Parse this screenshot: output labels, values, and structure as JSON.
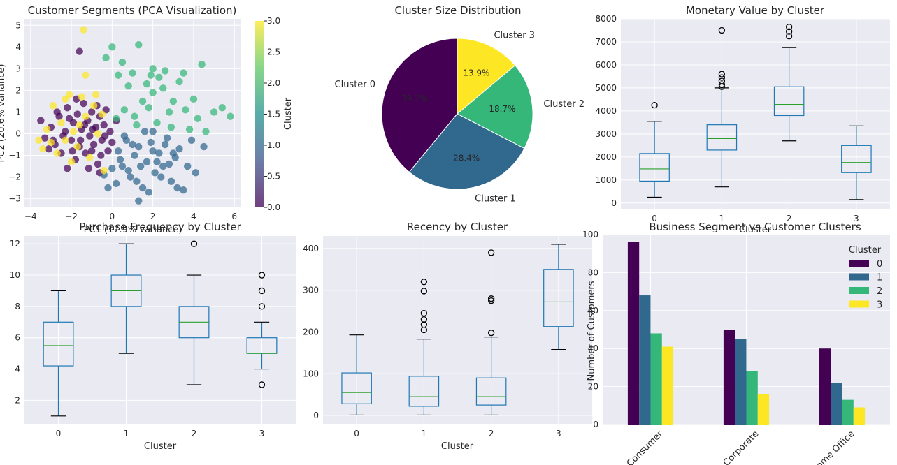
{
  "chart_data": [
    {
      "type": "scatter",
      "title": "Customer Segments (PCA Visualization)",
      "xlabel": "PC1 (17.9% variance)",
      "ylabel": "PC2 (20.6% variance)",
      "xlim": [
        -4.3,
        6.3
      ],
      "ylim": [
        -3.4,
        5.3
      ],
      "xticks": [
        "−4",
        "−2",
        "0",
        "2",
        "4",
        "6"
      ],
      "yticks": [
        "−3",
        "−2",
        "−1",
        "0",
        "1",
        "2",
        "3",
        "4",
        "5"
      ],
      "colorbar": {
        "label": "Cluster",
        "range": [
          0,
          3
        ],
        "ticks": [
          "0.0",
          "0.5",
          "1.0",
          "1.5",
          "2.0",
          "2.5",
          "3.0"
        ]
      },
      "colormap": [
        "#440154",
        "#3b528b",
        "#21918c",
        "#5ec962",
        "#fde725"
      ],
      "series": [
        {
          "cluster": 0,
          "color": "#440154",
          "points": [
            [
              -3.5,
              0.6
            ],
            [
              -3.3,
              -0.2
            ],
            [
              -3.0,
              0.3
            ],
            [
              -2.8,
              -0.5
            ],
            [
              -2.6,
              0.8
            ],
            [
              -2.5,
              -0.9
            ],
            [
              -2.3,
              0.1
            ],
            [
              -2.2,
              1.2
            ],
            [
              -2.0,
              -0.3
            ],
            [
              -1.9,
              0.5
            ],
            [
              -1.8,
              -1.2
            ],
            [
              -1.7,
              0.9
            ],
            [
              -1.6,
              -0.6
            ],
            [
              -1.5,
              0.2
            ],
            [
              -1.4,
              1.4
            ],
            [
              -1.3,
              -0.9
            ],
            [
              -1.2,
              0.6
            ],
            [
              -1.1,
              -0.1
            ],
            [
              -1.0,
              1.0
            ],
            [
              -0.9,
              -0.5
            ],
            [
              -0.8,
              0.3
            ],
            [
              -0.7,
              -1.4
            ],
            [
              -0.6,
              0.8
            ],
            [
              -0.5,
              -0.3
            ],
            [
              -0.4,
              0.4
            ],
            [
              -0.3,
              1.1
            ],
            [
              -0.2,
              -0.8
            ],
            [
              -0.1,
              0.1
            ],
            [
              0.0,
              -0.4
            ],
            [
              0.2,
              0.6
            ],
            [
              -3.1,
              -0.7
            ],
            [
              -2.7,
              1.0
            ],
            [
              -2.4,
              -0.1
            ],
            [
              -2.1,
              0.7
            ],
            [
              -1.95,
              -0.8
            ],
            [
              -1.75,
              1.6
            ],
            [
              -1.55,
              -0.3
            ],
            [
              -1.35,
              0.4
            ],
            [
              -1.15,
              -1.6
            ],
            [
              -0.95,
              0.2
            ],
            [
              -0.75,
              1.3
            ],
            [
              -0.55,
              -1.0
            ],
            [
              -0.35,
              -0.1
            ],
            [
              -1.6,
              3.8
            ],
            [
              -2.9,
              -0.3
            ],
            [
              -2.2,
              -1.6
            ],
            [
              -1.0,
              -0.8
            ],
            [
              -0.6,
              -1.8
            ]
          ]
        },
        {
          "cluster": 1,
          "color": "#31688e",
          "points": [
            [
              0.3,
              -0.8
            ],
            [
              0.5,
              -1.5
            ],
            [
              0.7,
              -0.3
            ],
            [
              0.9,
              -2.0
            ],
            [
              1.1,
              -1.0
            ],
            [
              1.3,
              -0.6
            ],
            [
              1.5,
              -2.5
            ],
            [
              1.7,
              -1.3
            ],
            [
              1.9,
              -0.4
            ],
            [
              2.1,
              -1.8
            ],
            [
              2.3,
              -0.9
            ],
            [
              2.5,
              -1.5
            ],
            [
              2.7,
              -0.2
            ],
            [
              2.9,
              -2.2
            ],
            [
              3.1,
              -1.1
            ],
            [
              3.3,
              -0.7
            ],
            [
              3.5,
              -2.6
            ],
            [
              3.7,
              -1.5
            ],
            [
              3.9,
              -0.3
            ],
            [
              4.1,
              -1.8
            ],
            [
              0.4,
              -1.2
            ],
            [
              0.6,
              -0.1
            ],
            [
              0.8,
              -1.7
            ],
            [
              1.0,
              -0.5
            ],
            [
              1.2,
              -2.2
            ],
            [
              1.4,
              -1.5
            ],
            [
              1.6,
              0.1
            ],
            [
              1.8,
              -2.7
            ],
            [
              2.0,
              -0.8
            ],
            [
              2.2,
              -1.3
            ],
            [
              2.4,
              -2.0
            ],
            [
              2.6,
              -0.5
            ],
            [
              2.8,
              -1.4
            ],
            [
              3.0,
              -0.9
            ],
            [
              3.2,
              -2.5
            ],
            [
              0.2,
              -2.3
            ],
            [
              0.0,
              -1.6
            ],
            [
              -0.2,
              -2.5
            ],
            [
              1.3,
              -3.1
            ],
            [
              2.0,
              0.1
            ],
            [
              4.5,
              -0.6
            ],
            [
              -0.4,
              -1.9
            ]
          ]
        },
        {
          "cluster": 2,
          "color": "#35b779",
          "points": [
            [
              0.0,
              4.0
            ],
            [
              -0.3,
              3.5
            ],
            [
              0.5,
              3.3
            ],
            [
              1.0,
              2.8
            ],
            [
              1.3,
              4.1
            ],
            [
              2.0,
              3.0
            ],
            [
              2.3,
              2.6
            ],
            [
              0.8,
              2.2
            ],
            [
              1.5,
              1.5
            ],
            [
              2.0,
              1.9
            ],
            [
              2.5,
              2.1
            ],
            [
              3.0,
              1.5
            ],
            [
              3.3,
              2.4
            ],
            [
              3.6,
              1.1
            ],
            [
              4.0,
              1.6
            ],
            [
              4.4,
              3.2
            ],
            [
              5.0,
              1.0
            ],
            [
              5.4,
              1.2
            ],
            [
              5.8,
              0.8
            ],
            [
              4.2,
              0.7
            ],
            [
              2.8,
              1.0
            ],
            [
              2.2,
              0.5
            ],
            [
              1.8,
              1.2
            ],
            [
              1.2,
              0.4
            ],
            [
              0.6,
              1.1
            ],
            [
              0.3,
              2.7
            ],
            [
              1.7,
              2.3
            ],
            [
              2.6,
              2.9
            ],
            [
              3.5,
              2.8
            ],
            [
              1.1,
              0.8
            ],
            [
              2.9,
              0.3
            ],
            [
              3.8,
              0.2
            ],
            [
              4.6,
              0.1
            ],
            [
              0.2,
              0.7
            ],
            [
              1.9,
              2.7
            ]
          ]
        },
        {
          "cluster": 3,
          "color": "#fde725",
          "points": [
            [
              -3.6,
              -0.3
            ],
            [
              -3.4,
              -0.7
            ],
            [
              -3.2,
              0.2
            ],
            [
              -2.9,
              1.3
            ],
            [
              -2.7,
              -0.9
            ],
            [
              -2.5,
              0.5
            ],
            [
              -2.3,
              -0.3
            ],
            [
              -2.1,
              1.8
            ],
            [
              -1.9,
              0.1
            ],
            [
              -1.7,
              -0.6
            ],
            [
              -1.5,
              1.7
            ],
            [
              -1.3,
              0.8
            ],
            [
              -1.1,
              -1.1
            ],
            [
              -0.9,
              1.3
            ],
            [
              -0.7,
              0.0
            ],
            [
              -0.5,
              0.9
            ],
            [
              -0.4,
              -1.7
            ],
            [
              -1.4,
              4.8
            ],
            [
              -1.3,
              2.7
            ],
            [
              -2.3,
              1.6
            ],
            [
              -0.8,
              1.8
            ],
            [
              -2.0,
              -1.3
            ],
            [
              -3.0,
              -0.4
            ],
            [
              -1.6,
              0.4
            ]
          ]
        }
      ]
    },
    {
      "type": "pie",
      "title": "Cluster Size Distribution",
      "labels": [
        "Cluster 0",
        "Cluster 1",
        "Cluster 2",
        "Cluster 3"
      ],
      "values": [
        39.1,
        28.4,
        18.7,
        13.9
      ],
      "pct_labels": [
        "39.1%",
        "28.4%",
        "18.7%",
        "13.9%"
      ],
      "colors": [
        "#440154",
        "#31688e",
        "#35b779",
        "#fde725"
      ]
    },
    {
      "type": "box",
      "title": "Monetary Value by Cluster",
      "xlabel": "Cluster",
      "ylabel": "",
      "categories": [
        "0",
        "1",
        "2",
        "3"
      ],
      "ylim": [
        -250,
        8000
      ],
      "yticks": [
        0,
        1000,
        2000,
        3000,
        4000,
        5000,
        6000,
        7000,
        8000
      ],
      "boxes": [
        {
          "whislo": 250,
          "q1": 950,
          "med": 1480,
          "q3": 2150,
          "whishi": 3550,
          "fliers": [
            4250
          ]
        },
        {
          "whislo": 700,
          "q1": 2300,
          "med": 2800,
          "q3": 3400,
          "whishi": 5000,
          "fliers": [
            5050,
            5150,
            5300,
            5450,
            5600,
            7500
          ]
        },
        {
          "whislo": 2700,
          "q1": 3800,
          "med": 4280,
          "q3": 5050,
          "whishi": 6750,
          "fliers": [
            7250,
            7450,
            7650
          ]
        },
        {
          "whislo": 150,
          "q1": 1320,
          "med": 1760,
          "q3": 2500,
          "whishi": 3350,
          "fliers": []
        }
      ]
    },
    {
      "type": "box",
      "title": "Purchase Frequency by Cluster",
      "xlabel": "Cluster",
      "ylabel": "",
      "categories": [
        "0",
        "1",
        "2",
        "3"
      ],
      "ylim": [
        0.5,
        12.5
      ],
      "yticks": [
        2,
        4,
        6,
        8,
        10,
        12
      ],
      "boxes": [
        {
          "whislo": 1,
          "q1": 4.2,
          "med": 5.5,
          "q3": 7,
          "whishi": 9,
          "fliers": []
        },
        {
          "whislo": 5,
          "q1": 8,
          "med": 9,
          "q3": 10,
          "whishi": 12,
          "fliers": []
        },
        {
          "whislo": 3,
          "q1": 6,
          "med": 7,
          "q3": 8,
          "whishi": 10,
          "fliers": [
            12
          ]
        },
        {
          "whislo": 4,
          "q1": 5,
          "med": 5,
          "q3": 6,
          "whishi": 7,
          "fliers": [
            3,
            8,
            9,
            10
          ]
        }
      ]
    },
    {
      "type": "box",
      "title": "Recency by Cluster",
      "xlabel": "Cluster",
      "ylabel": "",
      "categories": [
        "0",
        "1",
        "2",
        "3"
      ],
      "ylim": [
        -20,
        430
      ],
      "yticks": [
        0,
        100,
        200,
        300,
        400
      ],
      "boxes": [
        {
          "whislo": 1,
          "q1": 28,
          "med": 55,
          "q3": 102,
          "whishi": 193,
          "fliers": []
        },
        {
          "whislo": 1,
          "q1": 22,
          "med": 45,
          "q3": 94,
          "whishi": 183,
          "fliers": [
            205,
            218,
            230,
            245,
            298,
            320
          ]
        },
        {
          "whislo": 1,
          "q1": 25,
          "med": 45,
          "q3": 90,
          "whishi": 188,
          "fliers": [
            198,
            275,
            280,
            390
          ]
        },
        {
          "whislo": 158,
          "q1": 213,
          "med": 272,
          "q3": 350,
          "whishi": 410,
          "fliers": []
        }
      ]
    },
    {
      "type": "bar",
      "title": "Business Segment vs Customer Clusters",
      "xlabel": "",
      "ylabel": "Number of Customers",
      "categories": [
        "Consumer",
        "Corporate",
        "Home Office"
      ],
      "ylim": [
        0,
        100
      ],
      "yticks": [
        0,
        20,
        40,
        60,
        80,
        100
      ],
      "legend": {
        "title": "Cluster",
        "position": "top-right"
      },
      "series": [
        {
          "name": "0",
          "color": "#440154",
          "values": [
            96,
            50,
            40
          ]
        },
        {
          "name": "1",
          "color": "#31688e",
          "values": [
            68,
            45,
            22
          ]
        },
        {
          "name": "2",
          "color": "#35b779",
          "values": [
            48,
            28,
            13
          ]
        },
        {
          "name": "3",
          "color": "#fde725",
          "values": [
            41,
            16,
            9
          ]
        }
      ]
    }
  ]
}
